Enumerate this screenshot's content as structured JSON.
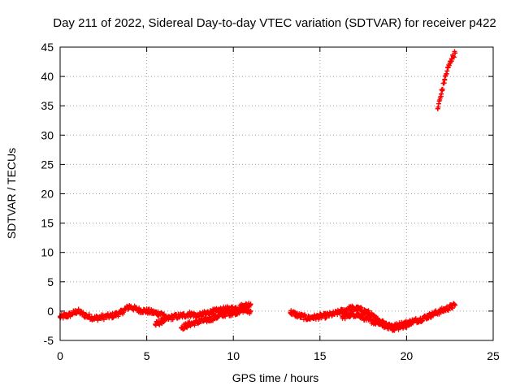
{
  "chart_data": {
    "type": "scatter",
    "title": "Day 211 of 2022, Sidereal Day-to-day VTEC variation (SDTVAR) for receiver p422",
    "xlabel": "GPS time / hours",
    "ylabel": "SDTVAR / TECUs",
    "xlim": [
      0,
      25
    ],
    "ylim": [
      -5,
      45
    ],
    "xticks": [
      0,
      5,
      10,
      15,
      20,
      25
    ],
    "yticks": [
      -5,
      0,
      5,
      10,
      15,
      20,
      25,
      30,
      35,
      40,
      45
    ],
    "grid": true,
    "series": [
      {
        "color": "#ff0000",
        "marker": "plus",
        "segments": [
          {
            "x": [
              0.0,
              0.5,
              1.0,
              1.5,
              2.0,
              2.5,
              3.0,
              3.5,
              4.0,
              4.5,
              5.0,
              5.5,
              6.0
            ],
            "y": [
              -1.0,
              -0.7,
              0.0,
              -0.8,
              -1.2,
              -1.0,
              -0.8,
              -0.3,
              0.8,
              0.2,
              0.0,
              -0.3,
              -0.5
            ]
          },
          {
            "x": [
              5.5,
              6.0,
              6.5,
              7.0,
              7.5,
              8.0,
              8.5,
              9.0,
              9.5,
              10.0,
              10.5,
              11.0
            ],
            "y": [
              -2.3,
              -1.5,
              -1.0,
              -0.8,
              -0.5,
              -0.8,
              -0.3,
              0.0,
              0.3,
              0.4,
              0.8,
              1.2
            ]
          },
          {
            "x": [
              7.0,
              7.5,
              8.0,
              8.5,
              9.0,
              9.5,
              10.0,
              10.5,
              11.0
            ],
            "y": [
              -2.8,
              -2.2,
              -1.8,
              -1.5,
              -1.0,
              -0.5,
              -0.3,
              0.2,
              0.0
            ]
          },
          {
            "x": [
              13.3,
              13.8,
              14.3,
              14.8,
              15.3,
              15.8,
              16.3,
              16.8,
              17.3,
              17.8,
              18.3,
              18.8,
              19.3,
              19.8,
              20.3,
              20.8,
              21.3,
              21.8,
              22.3,
              22.8
            ],
            "y": [
              -0.2,
              -0.8,
              -1.2,
              -1.0,
              -0.8,
              -0.5,
              0.0,
              0.5,
              0.3,
              -0.3,
              -1.5,
              -2.2,
              -2.6,
              -2.2,
              -1.8,
              -1.4,
              -0.8,
              -0.2,
              0.4,
              1.0
            ]
          },
          {
            "x": [
              16.3,
              16.8,
              17.3,
              17.8,
              18.3,
              18.8,
              19.3,
              19.8,
              20.3
            ],
            "y": [
              -1.0,
              -0.5,
              -0.7,
              -1.5,
              -2.0,
              -2.5,
              -3.0,
              -2.5,
              -2.0
            ]
          },
          {
            "x": [
              21.8,
              22.0,
              22.2,
              22.4,
              22.6,
              22.8
            ],
            "y": [
              34.5,
              37.0,
              39.5,
              41.5,
              43.0,
              44.0
            ]
          }
        ]
      }
    ]
  }
}
